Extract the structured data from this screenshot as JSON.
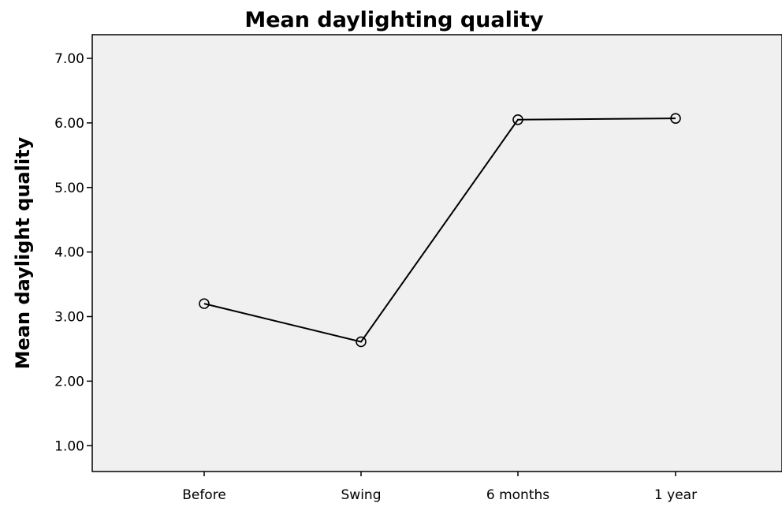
{
  "chart_data": {
    "type": "line",
    "title": "Mean daylighting quality",
    "xlabel": "",
    "ylabel": "Mean daylight quality",
    "categories": [
      "Before",
      "Swing",
      "6 months",
      "1 year"
    ],
    "series": [
      {
        "values": [
          3.2,
          2.61,
          6.05,
          6.07
        ]
      }
    ],
    "ylim": [
      0.6,
      7.0
    ],
    "yticks": [
      1.0,
      2.0,
      3.0,
      4.0,
      5.0,
      6.0,
      7.0
    ],
    "ytick_labels": [
      "1.00",
      "2.00",
      "3.00",
      "4.00",
      "5.00",
      "6.00",
      "7.00"
    ],
    "grid": false,
    "legend": "none",
    "plot_background": "#f0f0f0",
    "line_color": "#000000",
    "marker": "open-circle"
  }
}
